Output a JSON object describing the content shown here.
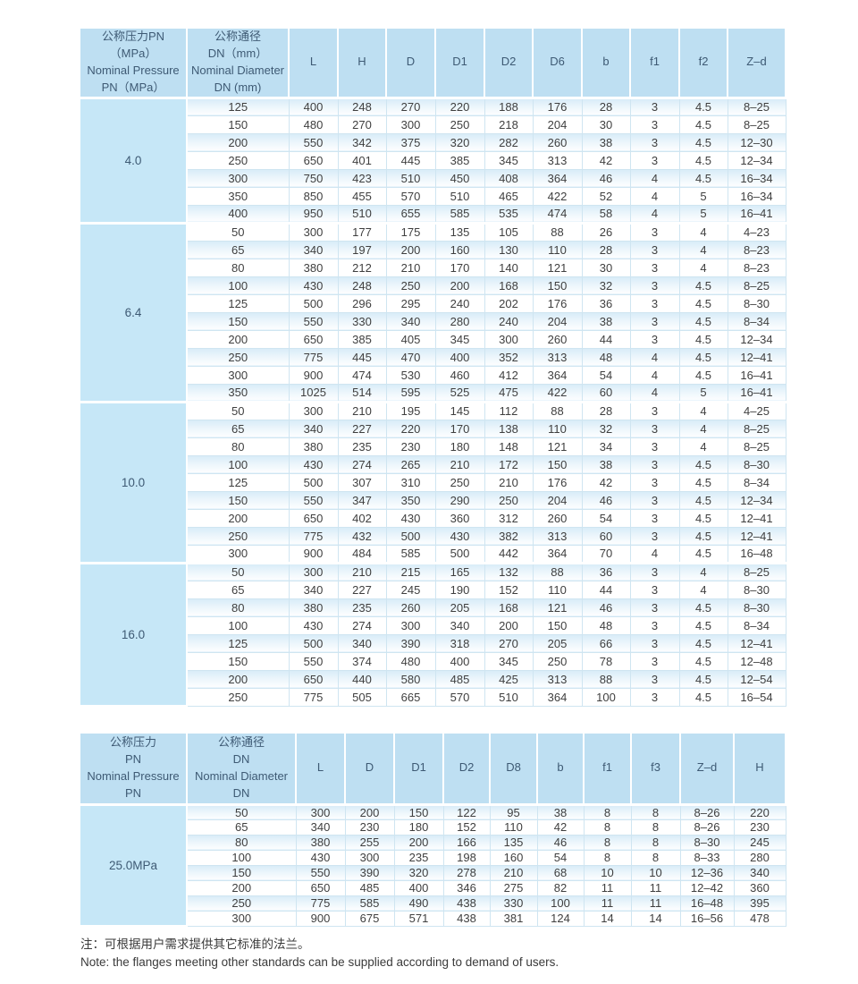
{
  "notes": {
    "zh": "注：可根据用户需求提供其它标准的法兰。",
    "en": "Note: the flanges meeting other standards can be supplied according to demand of users."
  },
  "tables": [
    {
      "pressure_header": [
        "公称压力PN",
        "（MPa）",
        "Nominal Pressure",
        "PN（MPa）"
      ],
      "dn_header": [
        "公称通径",
        "DN（mm）",
        "Nominal Diameter",
        "DN (mm)"
      ],
      "dim_columns": [
        "L",
        "H",
        "D",
        "D1",
        "D2",
        "D6",
        "b",
        "f1",
        "f2",
        "Z–d"
      ],
      "groups": [
        {
          "pressure": "4.0",
          "rows": [
            [
              "125",
              "400",
              "248",
              "270",
              "220",
              "188",
              "176",
              "28",
              "3",
              "4.5",
              "8–25"
            ],
            [
              "150",
              "480",
              "270",
              "300",
              "250",
              "218",
              "204",
              "30",
              "3",
              "4.5",
              "8–25"
            ],
            [
              "200",
              "550",
              "342",
              "375",
              "320",
              "282",
              "260",
              "38",
              "3",
              "4.5",
              "12–30"
            ],
            [
              "250",
              "650",
              "401",
              "445",
              "385",
              "345",
              "313",
              "42",
              "3",
              "4.5",
              "12–34"
            ],
            [
              "300",
              "750",
              "423",
              "510",
              "450",
              "408",
              "364",
              "46",
              "4",
              "4.5",
              "16–34"
            ],
            [
              "350",
              "850",
              "455",
              "570",
              "510",
              "465",
              "422",
              "52",
              "4",
              "5",
              "16–34"
            ],
            [
              "400",
              "950",
              "510",
              "655",
              "585",
              "535",
              "474",
              "58",
              "4",
              "5",
              "16–41"
            ]
          ]
        },
        {
          "pressure": "6.4",
          "rows": [
            [
              "50",
              "300",
              "177",
              "175",
              "135",
              "105",
              "88",
              "26",
              "3",
              "4",
              "4–23"
            ],
            [
              "65",
              "340",
              "197",
              "200",
              "160",
              "130",
              "110",
              "28",
              "3",
              "4",
              "8–23"
            ],
            [
              "80",
              "380",
              "212",
              "210",
              "170",
              "140",
              "121",
              "30",
              "3",
              "4",
              "8–23"
            ],
            [
              "100",
              "430",
              "248",
              "250",
              "200",
              "168",
              "150",
              "32",
              "3",
              "4.5",
              "8–25"
            ],
            [
              "125",
              "500",
              "296",
              "295",
              "240",
              "202",
              "176",
              "36",
              "3",
              "4.5",
              "8–30"
            ],
            [
              "150",
              "550",
              "330",
              "340",
              "280",
              "240",
              "204",
              "38",
              "3",
              "4.5",
              "8–34"
            ],
            [
              "200",
              "650",
              "385",
              "405",
              "345",
              "300",
              "260",
              "44",
              "3",
              "4.5",
              "12–34"
            ],
            [
              "250",
              "775",
              "445",
              "470",
              "400",
              "352",
              "313",
              "48",
              "4",
              "4.5",
              "12–41"
            ],
            [
              "300",
              "900",
              "474",
              "530",
              "460",
              "412",
              "364",
              "54",
              "4",
              "4.5",
              "16–41"
            ],
            [
              "350",
              "1025",
              "514",
              "595",
              "525",
              "475",
              "422",
              "60",
              "4",
              "5",
              "16–41"
            ]
          ]
        },
        {
          "pressure": "10.0",
          "rows": [
            [
              "50",
              "300",
              "210",
              "195",
              "145",
              "112",
              "88",
              "28",
              "3",
              "4",
              "4–25"
            ],
            [
              "65",
              "340",
              "227",
              "220",
              "170",
              "138",
              "110",
              "32",
              "3",
              "4",
              "8–25"
            ],
            [
              "80",
              "380",
              "235",
              "230",
              "180",
              "148",
              "121",
              "34",
              "3",
              "4",
              "8–25"
            ],
            [
              "100",
              "430",
              "274",
              "265",
              "210",
              "172",
              "150",
              "38",
              "3",
              "4.5",
              "8–30"
            ],
            [
              "125",
              "500",
              "307",
              "310",
              "250",
              "210",
              "176",
              "42",
              "3",
              "4.5",
              "8–34"
            ],
            [
              "150",
              "550",
              "347",
              "350",
              "290",
              "250",
              "204",
              "46",
              "3",
              "4.5",
              "12–34"
            ],
            [
              "200",
              "650",
              "402",
              "430",
              "360",
              "312",
              "260",
              "54",
              "3",
              "4.5",
              "12–41"
            ],
            [
              "250",
              "775",
              "432",
              "500",
              "430",
              "382",
              "313",
              "60",
              "3",
              "4.5",
              "12–41"
            ],
            [
              "300",
              "900",
              "484",
              "585",
              "500",
              "442",
              "364",
              "70",
              "4",
              "4.5",
              "16–48"
            ]
          ]
        },
        {
          "pressure": "16.0",
          "rows": [
            [
              "50",
              "300",
              "210",
              "215",
              "165",
              "132",
              "88",
              "36",
              "3",
              "4",
              "8–25"
            ],
            [
              "65",
              "340",
              "227",
              "245",
              "190",
              "152",
              "110",
              "44",
              "3",
              "4",
              "8–30"
            ],
            [
              "80",
              "380",
              "235",
              "260",
              "205",
              "168",
              "121",
              "46",
              "3",
              "4.5",
              "8–30"
            ],
            [
              "100",
              "430",
              "274",
              "300",
              "340",
              "200",
              "150",
              "48",
              "3",
              "4.5",
              "8–34"
            ],
            [
              "125",
              "500",
              "340",
              "390",
              "318",
              "270",
              "205",
              "66",
              "3",
              "4.5",
              "12–41"
            ],
            [
              "150",
              "550",
              "374",
              "480",
              "400",
              "345",
              "250",
              "78",
              "3",
              "4.5",
              "12–48"
            ],
            [
              "200",
              "650",
              "440",
              "580",
              "485",
              "425",
              "313",
              "88",
              "3",
              "4.5",
              "12–54"
            ],
            [
              "250",
              "775",
              "505",
              "665",
              "570",
              "510",
              "364",
              "100",
              "3",
              "4.5",
              "16–54"
            ]
          ]
        }
      ]
    },
    {
      "pressure_header": [
        "公称压力",
        "PN",
        "Nominal Pressure",
        "PN"
      ],
      "dn_header": [
        "公称通径",
        "DN",
        "Nominal Diameter",
        "DN"
      ],
      "dim_columns": [
        "L",
        "D",
        "D1",
        "D2",
        "D8",
        "b",
        "f1",
        "f3",
        "Z–d",
        "H"
      ],
      "groups": [
        {
          "pressure": "25.0MPa",
          "rows": [
            [
              "50",
              "300",
              "200",
              "150",
              "122",
              "95",
              "38",
              "8",
              "8",
              "8–26",
              "220"
            ],
            [
              "65",
              "340",
              "230",
              "180",
              "152",
              "110",
              "42",
              "8",
              "8",
              "8–26",
              "230"
            ],
            [
              "80",
              "380",
              "255",
              "200",
              "166",
              "135",
              "46",
              "8",
              "8",
              "8–30",
              "245"
            ],
            [
              "100",
              "430",
              "300",
              "235",
              "198",
              "160",
              "54",
              "8",
              "8",
              "8–33",
              "280"
            ],
            [
              "150",
              "550",
              "390",
              "320",
              "278",
              "210",
              "68",
              "10",
              "10",
              "12–36",
              "340"
            ],
            [
              "200",
              "650",
              "485",
              "400",
              "346",
              "275",
              "82",
              "11",
              "11",
              "12–42",
              "360"
            ],
            [
              "250",
              "775",
              "585",
              "490",
              "438",
              "330",
              "100",
              "11",
              "11",
              "16–48",
              "395"
            ],
            [
              "300",
              "900",
              "675",
              "571",
              "438",
              "381",
              "124",
              "14",
              "14",
              "16–56",
              "478"
            ]
          ]
        }
      ]
    }
  ]
}
